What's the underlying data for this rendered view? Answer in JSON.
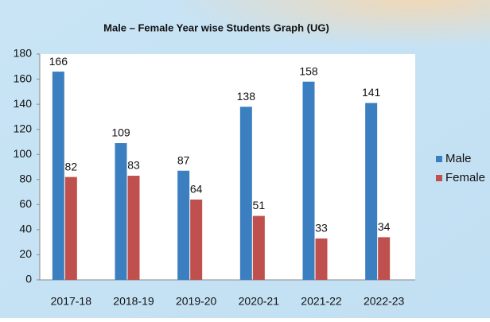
{
  "chart_data": {
    "type": "bar",
    "title": "Male – Female Year wise Students Graph (UG)",
    "categories": [
      "2017-18",
      "2018-19",
      "2019-20",
      "2020-21",
      "2021-22",
      "2022-23"
    ],
    "series": [
      {
        "name": "Male",
        "color": "#3c7fc0",
        "values": [
          166,
          109,
          87,
          138,
          158,
          141
        ]
      },
      {
        "name": "Female",
        "color": "#c0504d",
        "values": [
          82,
          83,
          64,
          51,
          33,
          34
        ]
      }
    ],
    "ylim": [
      0,
      180
    ],
    "yticks": [
      0,
      20,
      40,
      60,
      80,
      100,
      120,
      140,
      160,
      180
    ],
    "grid": false,
    "legend": "right"
  }
}
